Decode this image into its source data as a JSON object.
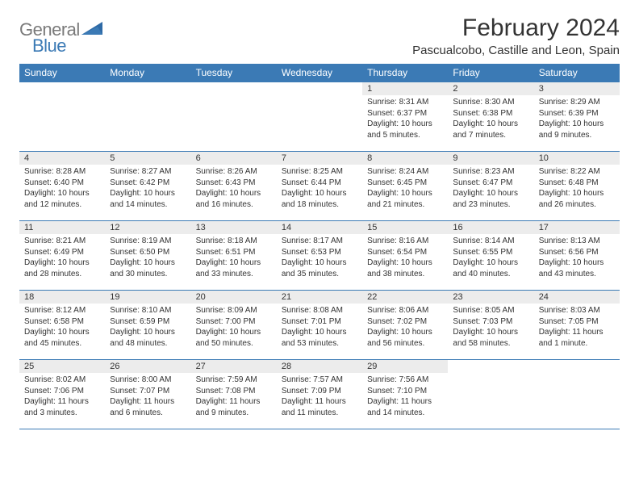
{
  "brand": {
    "line1": "General",
    "line2": "Blue"
  },
  "colors": {
    "header_bg": "#3b7ab5",
    "header_fg": "#ffffff",
    "daynum_bg": "#ececec",
    "text": "#333333",
    "logo_gray": "#7a7a7a",
    "logo_blue": "#3b7ab5",
    "border": "#3b7ab5"
  },
  "title": "February 2024",
  "location": "Pascualcobo, Castille and Leon, Spain",
  "weekdays": [
    "Sunday",
    "Monday",
    "Tuesday",
    "Wednesday",
    "Thursday",
    "Friday",
    "Saturday"
  ],
  "weeks": [
    [
      null,
      null,
      null,
      null,
      {
        "day": "1",
        "sunrise": "Sunrise: 8:31 AM",
        "sunset": "Sunset: 6:37 PM",
        "daylight1": "Daylight: 10 hours",
        "daylight2": "and 5 minutes."
      },
      {
        "day": "2",
        "sunrise": "Sunrise: 8:30 AM",
        "sunset": "Sunset: 6:38 PM",
        "daylight1": "Daylight: 10 hours",
        "daylight2": "and 7 minutes."
      },
      {
        "day": "3",
        "sunrise": "Sunrise: 8:29 AM",
        "sunset": "Sunset: 6:39 PM",
        "daylight1": "Daylight: 10 hours",
        "daylight2": "and 9 minutes."
      }
    ],
    [
      {
        "day": "4",
        "sunrise": "Sunrise: 8:28 AM",
        "sunset": "Sunset: 6:40 PM",
        "daylight1": "Daylight: 10 hours",
        "daylight2": "and 12 minutes."
      },
      {
        "day": "5",
        "sunrise": "Sunrise: 8:27 AM",
        "sunset": "Sunset: 6:42 PM",
        "daylight1": "Daylight: 10 hours",
        "daylight2": "and 14 minutes."
      },
      {
        "day": "6",
        "sunrise": "Sunrise: 8:26 AM",
        "sunset": "Sunset: 6:43 PM",
        "daylight1": "Daylight: 10 hours",
        "daylight2": "and 16 minutes."
      },
      {
        "day": "7",
        "sunrise": "Sunrise: 8:25 AM",
        "sunset": "Sunset: 6:44 PM",
        "daylight1": "Daylight: 10 hours",
        "daylight2": "and 18 minutes."
      },
      {
        "day": "8",
        "sunrise": "Sunrise: 8:24 AM",
        "sunset": "Sunset: 6:45 PM",
        "daylight1": "Daylight: 10 hours",
        "daylight2": "and 21 minutes."
      },
      {
        "day": "9",
        "sunrise": "Sunrise: 8:23 AM",
        "sunset": "Sunset: 6:47 PM",
        "daylight1": "Daylight: 10 hours",
        "daylight2": "and 23 minutes."
      },
      {
        "day": "10",
        "sunrise": "Sunrise: 8:22 AM",
        "sunset": "Sunset: 6:48 PM",
        "daylight1": "Daylight: 10 hours",
        "daylight2": "and 26 minutes."
      }
    ],
    [
      {
        "day": "11",
        "sunrise": "Sunrise: 8:21 AM",
        "sunset": "Sunset: 6:49 PM",
        "daylight1": "Daylight: 10 hours",
        "daylight2": "and 28 minutes."
      },
      {
        "day": "12",
        "sunrise": "Sunrise: 8:19 AM",
        "sunset": "Sunset: 6:50 PM",
        "daylight1": "Daylight: 10 hours",
        "daylight2": "and 30 minutes."
      },
      {
        "day": "13",
        "sunrise": "Sunrise: 8:18 AM",
        "sunset": "Sunset: 6:51 PM",
        "daylight1": "Daylight: 10 hours",
        "daylight2": "and 33 minutes."
      },
      {
        "day": "14",
        "sunrise": "Sunrise: 8:17 AM",
        "sunset": "Sunset: 6:53 PM",
        "daylight1": "Daylight: 10 hours",
        "daylight2": "and 35 minutes."
      },
      {
        "day": "15",
        "sunrise": "Sunrise: 8:16 AM",
        "sunset": "Sunset: 6:54 PM",
        "daylight1": "Daylight: 10 hours",
        "daylight2": "and 38 minutes."
      },
      {
        "day": "16",
        "sunrise": "Sunrise: 8:14 AM",
        "sunset": "Sunset: 6:55 PM",
        "daylight1": "Daylight: 10 hours",
        "daylight2": "and 40 minutes."
      },
      {
        "day": "17",
        "sunrise": "Sunrise: 8:13 AM",
        "sunset": "Sunset: 6:56 PM",
        "daylight1": "Daylight: 10 hours",
        "daylight2": "and 43 minutes."
      }
    ],
    [
      {
        "day": "18",
        "sunrise": "Sunrise: 8:12 AM",
        "sunset": "Sunset: 6:58 PM",
        "daylight1": "Daylight: 10 hours",
        "daylight2": "and 45 minutes."
      },
      {
        "day": "19",
        "sunrise": "Sunrise: 8:10 AM",
        "sunset": "Sunset: 6:59 PM",
        "daylight1": "Daylight: 10 hours",
        "daylight2": "and 48 minutes."
      },
      {
        "day": "20",
        "sunrise": "Sunrise: 8:09 AM",
        "sunset": "Sunset: 7:00 PM",
        "daylight1": "Daylight: 10 hours",
        "daylight2": "and 50 minutes."
      },
      {
        "day": "21",
        "sunrise": "Sunrise: 8:08 AM",
        "sunset": "Sunset: 7:01 PM",
        "daylight1": "Daylight: 10 hours",
        "daylight2": "and 53 minutes."
      },
      {
        "day": "22",
        "sunrise": "Sunrise: 8:06 AM",
        "sunset": "Sunset: 7:02 PM",
        "daylight1": "Daylight: 10 hours",
        "daylight2": "and 56 minutes."
      },
      {
        "day": "23",
        "sunrise": "Sunrise: 8:05 AM",
        "sunset": "Sunset: 7:03 PM",
        "daylight1": "Daylight: 10 hours",
        "daylight2": "and 58 minutes."
      },
      {
        "day": "24",
        "sunrise": "Sunrise: 8:03 AM",
        "sunset": "Sunset: 7:05 PM",
        "daylight1": "Daylight: 11 hours",
        "daylight2": "and 1 minute."
      }
    ],
    [
      {
        "day": "25",
        "sunrise": "Sunrise: 8:02 AM",
        "sunset": "Sunset: 7:06 PM",
        "daylight1": "Daylight: 11 hours",
        "daylight2": "and 3 minutes."
      },
      {
        "day": "26",
        "sunrise": "Sunrise: 8:00 AM",
        "sunset": "Sunset: 7:07 PM",
        "daylight1": "Daylight: 11 hours",
        "daylight2": "and 6 minutes."
      },
      {
        "day": "27",
        "sunrise": "Sunrise: 7:59 AM",
        "sunset": "Sunset: 7:08 PM",
        "daylight1": "Daylight: 11 hours",
        "daylight2": "and 9 minutes."
      },
      {
        "day": "28",
        "sunrise": "Sunrise: 7:57 AM",
        "sunset": "Sunset: 7:09 PM",
        "daylight1": "Daylight: 11 hours",
        "daylight2": "and 11 minutes."
      },
      {
        "day": "29",
        "sunrise": "Sunrise: 7:56 AM",
        "sunset": "Sunset: 7:10 PM",
        "daylight1": "Daylight: 11 hours",
        "daylight2": "and 14 minutes."
      },
      null,
      null
    ]
  ]
}
